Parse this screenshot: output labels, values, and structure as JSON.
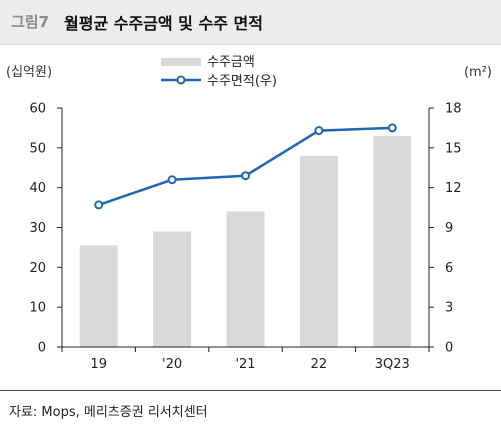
{
  "header": {
    "figure_label": "그림7",
    "title": "월평균 수주금액 및 수주 면적"
  },
  "source": "자료: Mops, 메리츠증권 리서치센터",
  "colors": {
    "bar": "#d9d9d9",
    "line": "#1f67b1",
    "marker_fill": "#ffffff",
    "axis": "#222222"
  },
  "chart_data": {
    "type": "bar",
    "categories": [
      "19",
      "'20",
      "'21",
      "22",
      "3Q23"
    ],
    "series": [
      {
        "name": "수주금액",
        "type": "bar",
        "axis": "left",
        "values": [
          25.5,
          29,
          34,
          48,
          53
        ]
      },
      {
        "name": "수주면적(우)",
        "type": "line",
        "axis": "right",
        "values": [
          10.7,
          12.6,
          12.9,
          16.3,
          16.5
        ]
      }
    ],
    "y_left": {
      "label": "(십억원)",
      "lim": [
        0,
        60
      ],
      "ticks": [
        0,
        10,
        20,
        30,
        40,
        50,
        60
      ]
    },
    "y_right": {
      "label": "(m²)",
      "lim": [
        0,
        18
      ],
      "ticks": [
        0,
        3,
        6,
        9,
        12,
        15,
        18
      ]
    },
    "grid": false,
    "legend": "top-center"
  }
}
